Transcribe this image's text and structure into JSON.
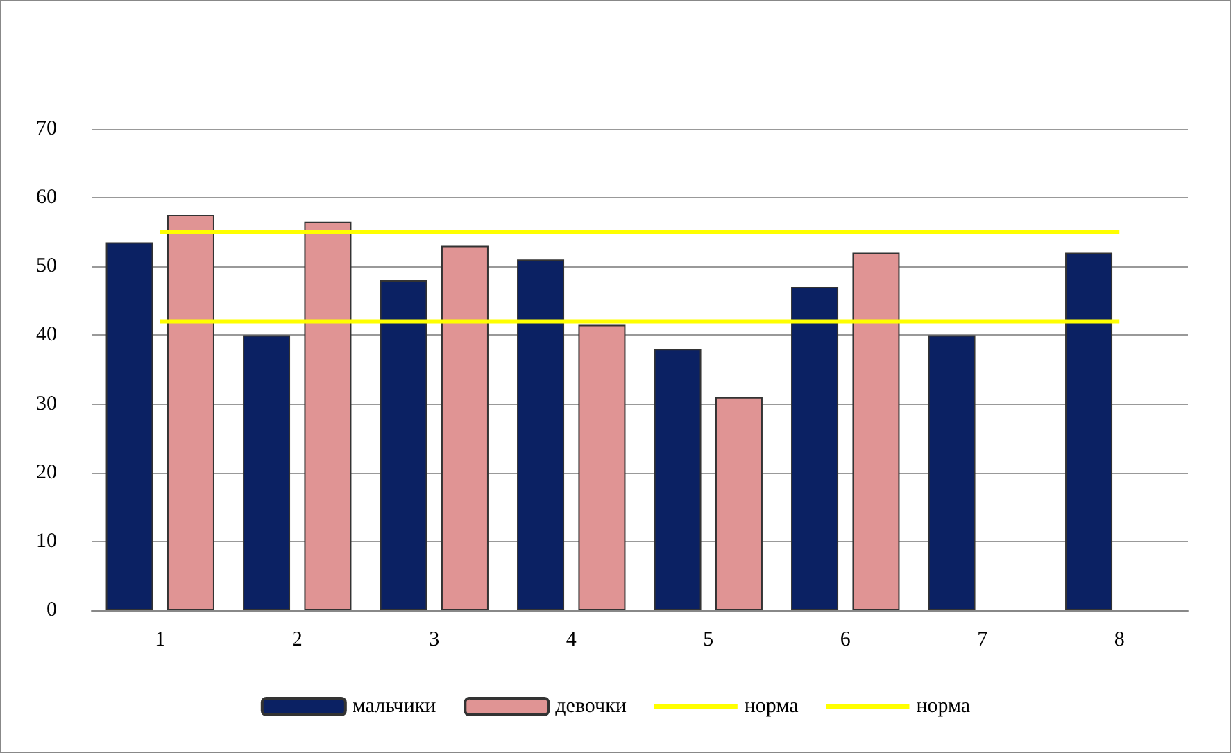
{
  "chart_data": {
    "type": "bar",
    "categories": [
      "1",
      "2",
      "3",
      "4",
      "5",
      "6",
      "7",
      "8"
    ],
    "series": [
      {
        "name": "мальчики",
        "color": "#0b2163",
        "values": [
          53.5,
          40,
          48,
          51,
          38,
          47,
          40,
          52
        ]
      },
      {
        "name": "девочки",
        "color": "#e09494",
        "values": [
          57.5,
          56.5,
          53,
          41.5,
          31,
          52,
          null,
          null
        ]
      },
      {
        "name": "норма",
        "type": "line",
        "color": "#ffff00",
        "values": [
          55,
          55,
          55,
          55,
          55,
          55,
          55,
          55
        ]
      },
      {
        "name": "норма",
        "type": "line",
        "color": "#ffff00",
        "values": [
          42,
          42,
          42,
          42,
          42,
          42,
          42,
          42
        ]
      }
    ],
    "ylim": [
      0,
      70
    ],
    "yticks": [
      0,
      10,
      20,
      30,
      40,
      50,
      60,
      70
    ],
    "grid": "y",
    "legend": "bottom",
    "marker": "none"
  }
}
